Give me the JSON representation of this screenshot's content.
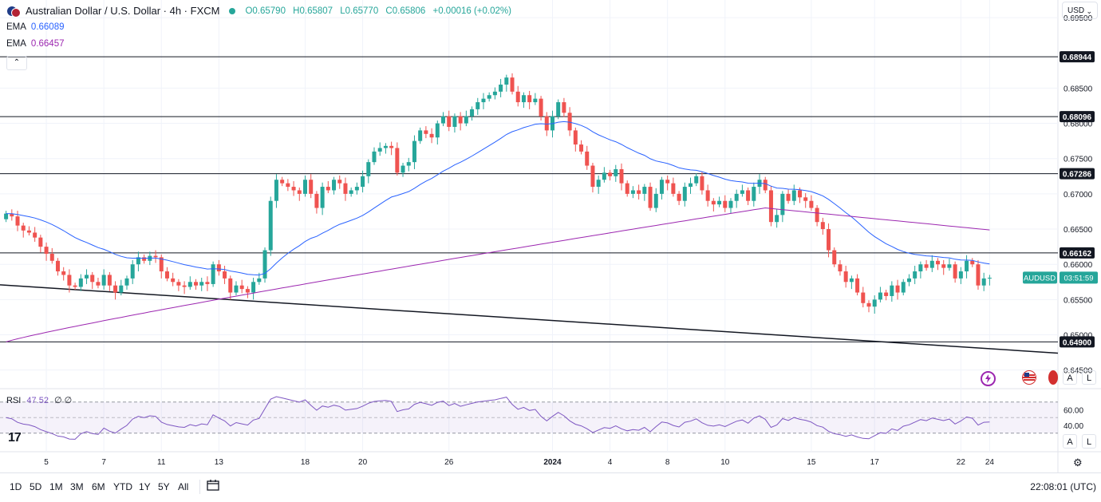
{
  "header": {
    "symbol_title": "Australian Dollar / U.S. Dollar · 4h · FXCM",
    "open": "O0.65790",
    "high": "H0.65807",
    "low": "L0.65770",
    "close": "C0.65806",
    "change": "+0.00016 (+0.02%)"
  },
  "indicators": [
    {
      "name": "EMA",
      "value": "0.66089",
      "color": "#2962ff"
    },
    {
      "name": "EMA",
      "value": "0.66457",
      "color": "#9c27b0"
    }
  ],
  "currency_selector": "USD",
  "price_label": {
    "symbol": "AUDUSD",
    "countdown": "03:51:59"
  },
  "rsi": {
    "label": "RSI",
    "value": "47.52",
    "extra": "∅ ∅",
    "ticks": [
      "60.00",
      "40.00"
    ]
  },
  "toolbar": {
    "timeframes": [
      "1D",
      "5D",
      "1M",
      "3M",
      "6M",
      "YTD",
      "1Y",
      "5Y",
      "All"
    ],
    "clock": "22:08:01 (UTC)"
  },
  "chart_data": {
    "type": "candlestick",
    "y_axis_ticks": [
      "0.69500",
      "0.68500",
      "0.68000",
      "0.67500",
      "0.67000",
      "0.66500",
      "0.66000",
      "0.65500",
      "0.65000",
      "0.64500"
    ],
    "ylim": [
      0.6427,
      0.6975
    ],
    "x_axis_ticks": [
      "5",
      "7",
      "11",
      "13",
      "18",
      "20",
      "26",
      "2024",
      "4",
      "8",
      "10",
      "15",
      "17",
      "22",
      "24"
    ],
    "horizontal_levels": [
      {
        "value": 0.68944,
        "label": "0.68944"
      },
      {
        "value": 0.68096,
        "label": "0.68096"
      },
      {
        "value": 0.67286,
        "label": "0.67286"
      },
      {
        "value": 0.66162,
        "label": "0.66162"
      },
      {
        "value": 0.649,
        "label": "0.64900"
      }
    ],
    "trend_line": {
      "start": 0.6571,
      "end": 0.6474
    },
    "last_price": 0.65806,
    "closes": [
      0.6672,
      0.6668,
      0.6655,
      0.6648,
      0.6645,
      0.6638,
      0.6625,
      0.6615,
      0.6605,
      0.659,
      0.6585,
      0.657,
      0.6568,
      0.658,
      0.6585,
      0.6575,
      0.657,
      0.6585,
      0.657,
      0.656,
      0.657,
      0.658,
      0.66,
      0.661,
      0.6605,
      0.6612,
      0.661,
      0.659,
      0.658,
      0.6575,
      0.657,
      0.6568,
      0.6575,
      0.657,
      0.6575,
      0.6572,
      0.66,
      0.659,
      0.658,
      0.656,
      0.657,
      0.6565,
      0.656,
      0.6575,
      0.658,
      0.662,
      0.669,
      0.672,
      0.6715,
      0.671,
      0.6705,
      0.67,
      0.672,
      0.67,
      0.668,
      0.671,
      0.6705,
      0.672,
      0.6715,
      0.67,
      0.6705,
      0.671,
      0.6725,
      0.6745,
      0.676,
      0.6765,
      0.6768,
      0.6765,
      0.673,
      0.674,
      0.6745,
      0.6775,
      0.679,
      0.6785,
      0.678,
      0.68,
      0.681,
      0.6795,
      0.681,
      0.68,
      0.681,
      0.682,
      0.683,
      0.6835,
      0.684,
      0.6845,
      0.6855,
      0.6865,
      0.6845,
      0.683,
      0.684,
      0.683,
      0.6835,
      0.681,
      0.679,
      0.681,
      0.683,
      0.6815,
      0.679,
      0.677,
      0.676,
      0.674,
      0.671,
      0.672,
      0.673,
      0.6725,
      0.6735,
      0.6715,
      0.67,
      0.6705,
      0.67,
      0.671,
      0.668,
      0.67,
      0.672,
      0.6715,
      0.67,
      0.669,
      0.671,
      0.6715,
      0.6725,
      0.6705,
      0.669,
      0.6685,
      0.669,
      0.668,
      0.669,
      0.67,
      0.6705,
      0.669,
      0.671,
      0.672,
      0.6705,
      0.666,
      0.667,
      0.67,
      0.669,
      0.6705,
      0.6695,
      0.669,
      0.668,
      0.666,
      0.665,
      0.662,
      0.66,
      0.659,
      0.6575,
      0.658,
      0.656,
      0.6545,
      0.654,
      0.655,
      0.656,
      0.6555,
      0.657,
      0.656,
      0.6575,
      0.658,
      0.659,
      0.66,
      0.6595,
      0.6605,
      0.66,
      0.6595,
      0.66,
      0.658,
      0.659,
      0.6605,
      0.66,
      0.657,
      0.658,
      0.6581
    ]
  }
}
